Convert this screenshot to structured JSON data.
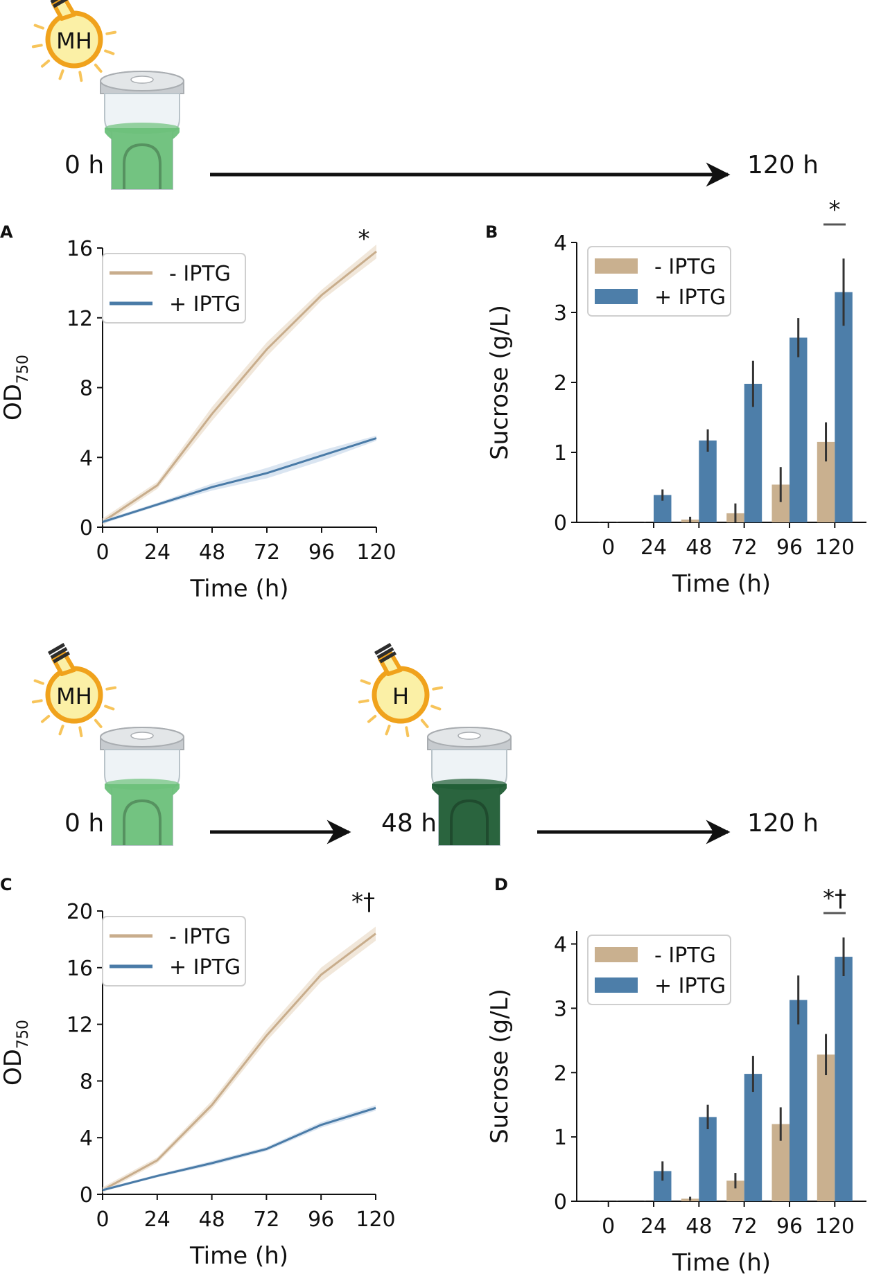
{
  "colors": {
    "minus": "#c8ad8c",
    "minus_band": "#efe3d4",
    "plus": "#4a7ba7",
    "plus_band": "#d3e1ee",
    "bar_minus": "#c9b08f",
    "bar_plus": "#4d7ea9",
    "err": "#333333",
    "annot": "#555555",
    "bulb_glow": "#f7c45a",
    "bulb_fill": "#fbf0a6",
    "bulb_outline": "#f0a21c",
    "liquid_light": "#6cc07a",
    "liquid_dark": "#1f5c34"
  },
  "scenario1": {
    "bulb_label": "MH",
    "start_label": "0 h",
    "end_label": "120 h"
  },
  "scenario2": {
    "bulb1_label": "MH",
    "bulb2_label": "H",
    "start_label": "0 h",
    "mid_label": "48 h",
    "end_label": "120 h"
  },
  "chart_data": [
    {
      "panel": "A",
      "type": "line",
      "xlabel": "Time (h)",
      "ylabel": "OD",
      "ylabel_sub": "750",
      "x": [
        0,
        24,
        48,
        72,
        96,
        120
      ],
      "xlim": [
        0,
        120
      ],
      "ylim": [
        0,
        16
      ],
      "yticks": [
        0,
        4,
        8,
        12,
        16
      ],
      "significance": "*",
      "legend": [
        "- IPTG",
        "+ IPTG"
      ],
      "legend_position": "top-left",
      "series": [
        {
          "name": "- IPTG",
          "values": [
            0.3,
            2.4,
            6.5,
            10.2,
            13.3,
            15.8
          ],
          "band": [
            0.2,
            0.2,
            0.4,
            0.4,
            0.3,
            0.4
          ]
        },
        {
          "name": "+ IPTG",
          "values": [
            0.3,
            1.3,
            2.3,
            3.1,
            4.1,
            5.1
          ],
          "band": [
            0.1,
            0.1,
            0.2,
            0.3,
            0.3,
            0.15
          ]
        }
      ]
    },
    {
      "panel": "B",
      "type": "bar",
      "xlabel": "Time (h)",
      "ylabel": "Sucrose (g/L)",
      "categories": [
        "0",
        "24",
        "48",
        "72",
        "96",
        "120"
      ],
      "ylim": [
        0,
        4
      ],
      "yticks": [
        0,
        1,
        2,
        3,
        4
      ],
      "significance": "*",
      "legend": [
        "- IPTG",
        "+ IPTG"
      ],
      "legend_position": "top-left",
      "series": [
        {
          "name": "- IPTG",
          "values": [
            0.0,
            0.0,
            0.04,
            0.13,
            0.54,
            1.15
          ],
          "err": [
            0.01,
            0.01,
            0.04,
            0.14,
            0.25,
            0.28
          ]
        },
        {
          "name": "+ IPTG",
          "values": [
            0.0,
            0.39,
            1.17,
            1.98,
            2.64,
            3.29
          ],
          "err": [
            0.01,
            0.08,
            0.16,
            0.33,
            0.28,
            0.48
          ]
        }
      ]
    },
    {
      "panel": "C",
      "type": "line",
      "xlabel": "Time (h)",
      "ylabel": "OD",
      "ylabel_sub": "750",
      "x": [
        0,
        24,
        48,
        72,
        96,
        120
      ],
      "xlim": [
        0,
        120
      ],
      "ylim": [
        0,
        20
      ],
      "yticks": [
        0,
        4,
        8,
        12,
        16,
        20
      ],
      "significance": "*†",
      "legend": [
        "- IPTG",
        "+ IPTG"
      ],
      "legend_position": "top-left",
      "series": [
        {
          "name": "- IPTG",
          "values": [
            0.3,
            2.4,
            6.3,
            11.2,
            15.5,
            18.4
          ],
          "band": [
            0.2,
            0.2,
            0.3,
            0.4,
            0.5,
            0.5
          ]
        },
        {
          "name": "+ IPTG",
          "values": [
            0.3,
            1.3,
            2.2,
            3.2,
            4.9,
            6.1
          ],
          "band": [
            0.1,
            0.1,
            0.15,
            0.15,
            0.2,
            0.2
          ]
        }
      ]
    },
    {
      "panel": "D",
      "type": "bar",
      "xlabel": "Time (h)",
      "ylabel": "Sucrose (g/L)",
      "categories": [
        "0",
        "24",
        "48",
        "72",
        "96",
        "120"
      ],
      "ylim": [
        0,
        4.2
      ],
      "yticks": [
        0,
        1,
        2,
        3,
        4
      ],
      "significance": "*†",
      "legend": [
        "- IPTG",
        "+ IPTG"
      ],
      "legend_position": "top-left",
      "series": [
        {
          "name": "- IPTG",
          "values": [
            0.0,
            0.0,
            0.04,
            0.32,
            1.2,
            2.28
          ],
          "err": [
            0.01,
            0.01,
            0.03,
            0.12,
            0.26,
            0.32
          ]
        },
        {
          "name": "+ IPTG",
          "values": [
            0.0,
            0.47,
            1.31,
            1.98,
            3.13,
            3.8
          ],
          "err": [
            0.01,
            0.15,
            0.19,
            0.28,
            0.38,
            0.3
          ]
        }
      ]
    }
  ]
}
